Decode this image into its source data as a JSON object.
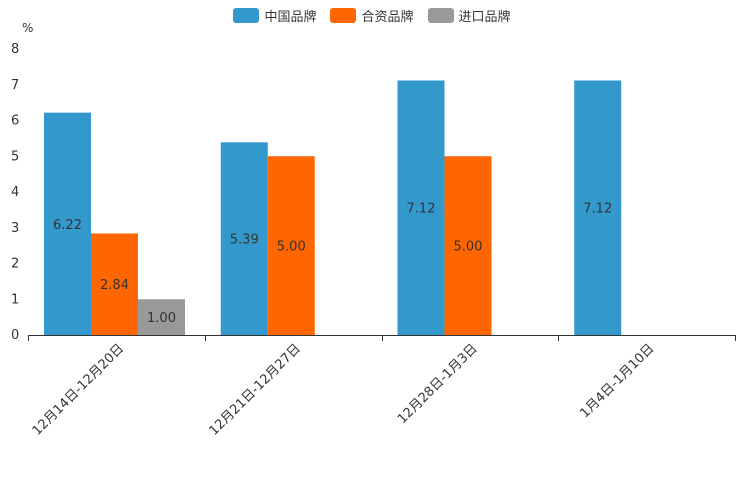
{
  "chart_data": {
    "type": "bar",
    "unit": "%",
    "categories": [
      "12月14日-12月20日",
      "12月21日-12月27日",
      "12月28日-1月3日",
      "1月4日-1月10日"
    ],
    "series": [
      {
        "name": "中国品牌",
        "color": "#3399cc",
        "values": [
          6.22,
          5.39,
          7.12,
          7.12
        ],
        "labels": [
          "6.22",
          "5.39",
          "7.12",
          "7.12"
        ]
      },
      {
        "name": "合资品牌",
        "color": "#ff6600",
        "values": [
          2.84,
          5.0,
          5.0,
          null
        ],
        "labels": [
          "2.84",
          "5.00",
          "5.00",
          null
        ]
      },
      {
        "name": "进口品牌",
        "color": "#999999",
        "values": [
          1.0,
          null,
          null,
          null
        ],
        "labels": [
          "1.00",
          null,
          null,
          null
        ]
      }
    ],
    "ylim": [
      0,
      8
    ],
    "yticks": [
      "0",
      "1",
      "2",
      "3",
      "4",
      "5",
      "6",
      "7",
      "8"
    ],
    "legend_position": "top-center"
  }
}
